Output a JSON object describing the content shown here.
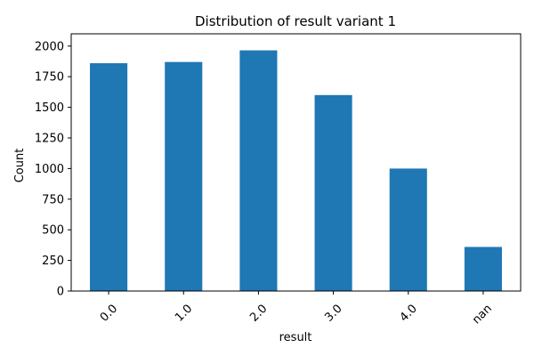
{
  "chart_data": {
    "type": "bar",
    "title": "Distribution of result variant 1",
    "xlabel": "result",
    "ylabel": "Count",
    "categories": [
      "0.0",
      "1.0",
      "2.0",
      "3.0",
      "4.0",
      "nan"
    ],
    "values": [
      1860,
      1870,
      1965,
      1600,
      1000,
      360
    ],
    "ylim": [
      0,
      2100
    ],
    "yticks": [
      0,
      250,
      500,
      750,
      1000,
      1250,
      1500,
      1750,
      2000
    ],
    "grid": false,
    "legend": "none",
    "colors": {
      "bar": "#1f77b4",
      "axis": "#000000",
      "background": "#ffffff"
    }
  }
}
